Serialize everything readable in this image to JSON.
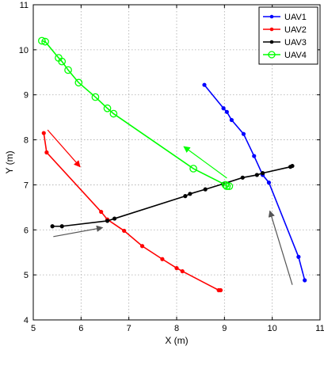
{
  "chart_data": {
    "type": "line",
    "xlabel": "X (m)",
    "ylabel": "Y (m)",
    "xlim": [
      5,
      11
    ],
    "ylim": [
      4,
      11
    ],
    "xticks": [
      5,
      6,
      7,
      8,
      9,
      10,
      11
    ],
    "yticks": [
      4,
      5,
      6,
      7,
      8,
      9,
      10,
      11
    ],
    "grid": true,
    "legend_position": "top-right",
    "series": [
      {
        "name": "UAV1",
        "color": "#0000ff",
        "marker": "point",
        "points": [
          [
            8.58,
            9.22
          ],
          [
            8.98,
            8.7
          ],
          [
            9.05,
            8.62
          ],
          [
            9.15,
            8.44
          ],
          [
            9.4,
            8.13
          ],
          [
            9.62,
            7.64
          ],
          [
            9.8,
            7.22
          ],
          [
            9.93,
            7.05
          ],
          [
            10.55,
            5.4
          ],
          [
            10.68,
            4.88
          ]
        ]
      },
      {
        "name": "UAV2",
        "color": "#ff0000",
        "marker": "point",
        "points": [
          [
            5.22,
            8.15
          ],
          [
            5.28,
            7.72
          ],
          [
            6.42,
            6.4
          ],
          [
            6.55,
            6.23
          ],
          [
            6.9,
            5.98
          ],
          [
            7.28,
            5.64
          ],
          [
            7.7,
            5.35
          ],
          [
            8.0,
            5.15
          ],
          [
            8.12,
            5.08
          ],
          [
            8.88,
            4.66
          ],
          [
            8.92,
            4.66
          ]
        ]
      },
      {
        "name": "UAV3",
        "color": "#000000",
        "marker": "point",
        "points": [
          [
            5.4,
            6.08
          ],
          [
            5.6,
            6.08
          ],
          [
            6.55,
            6.2
          ],
          [
            6.7,
            6.25
          ],
          [
            8.18,
            6.75
          ],
          [
            8.28,
            6.8
          ],
          [
            8.6,
            6.9
          ],
          [
            8.97,
            7.02
          ],
          [
            9.38,
            7.16
          ],
          [
            9.68,
            7.22
          ],
          [
            9.8,
            7.26
          ],
          [
            10.38,
            7.4
          ],
          [
            10.42,
            7.42
          ]
        ]
      },
      {
        "name": "UAV4",
        "color": "#00ff00",
        "marker": "circle",
        "points": [
          [
            5.18,
            10.2
          ],
          [
            5.25,
            10.18
          ],
          [
            5.53,
            9.82
          ],
          [
            5.6,
            9.74
          ],
          [
            5.73,
            9.55
          ],
          [
            5.95,
            9.27
          ],
          [
            6.3,
            8.95
          ],
          [
            6.55,
            8.7
          ],
          [
            6.68,
            8.58
          ],
          [
            8.35,
            7.36
          ],
          [
            9.02,
            7.0
          ],
          [
            9.05,
            6.97
          ],
          [
            9.1,
            6.97
          ]
        ]
      }
    ],
    "arrows": [
      {
        "color": "#ff0000",
        "from": [
          5.3,
          8.22
        ],
        "to": [
          5.98,
          7.4
        ]
      },
      {
        "color": "#00ff00",
        "from": [
          9.05,
          7.15
        ],
        "to": [
          8.15,
          7.85
        ]
      },
      {
        "color": "#555555",
        "from": [
          5.42,
          5.85
        ],
        "to": [
          6.45,
          6.05
        ]
      },
      {
        "color": "#555555",
        "from": [
          10.42,
          4.78
        ],
        "to": [
          9.95,
          6.42
        ]
      }
    ]
  }
}
